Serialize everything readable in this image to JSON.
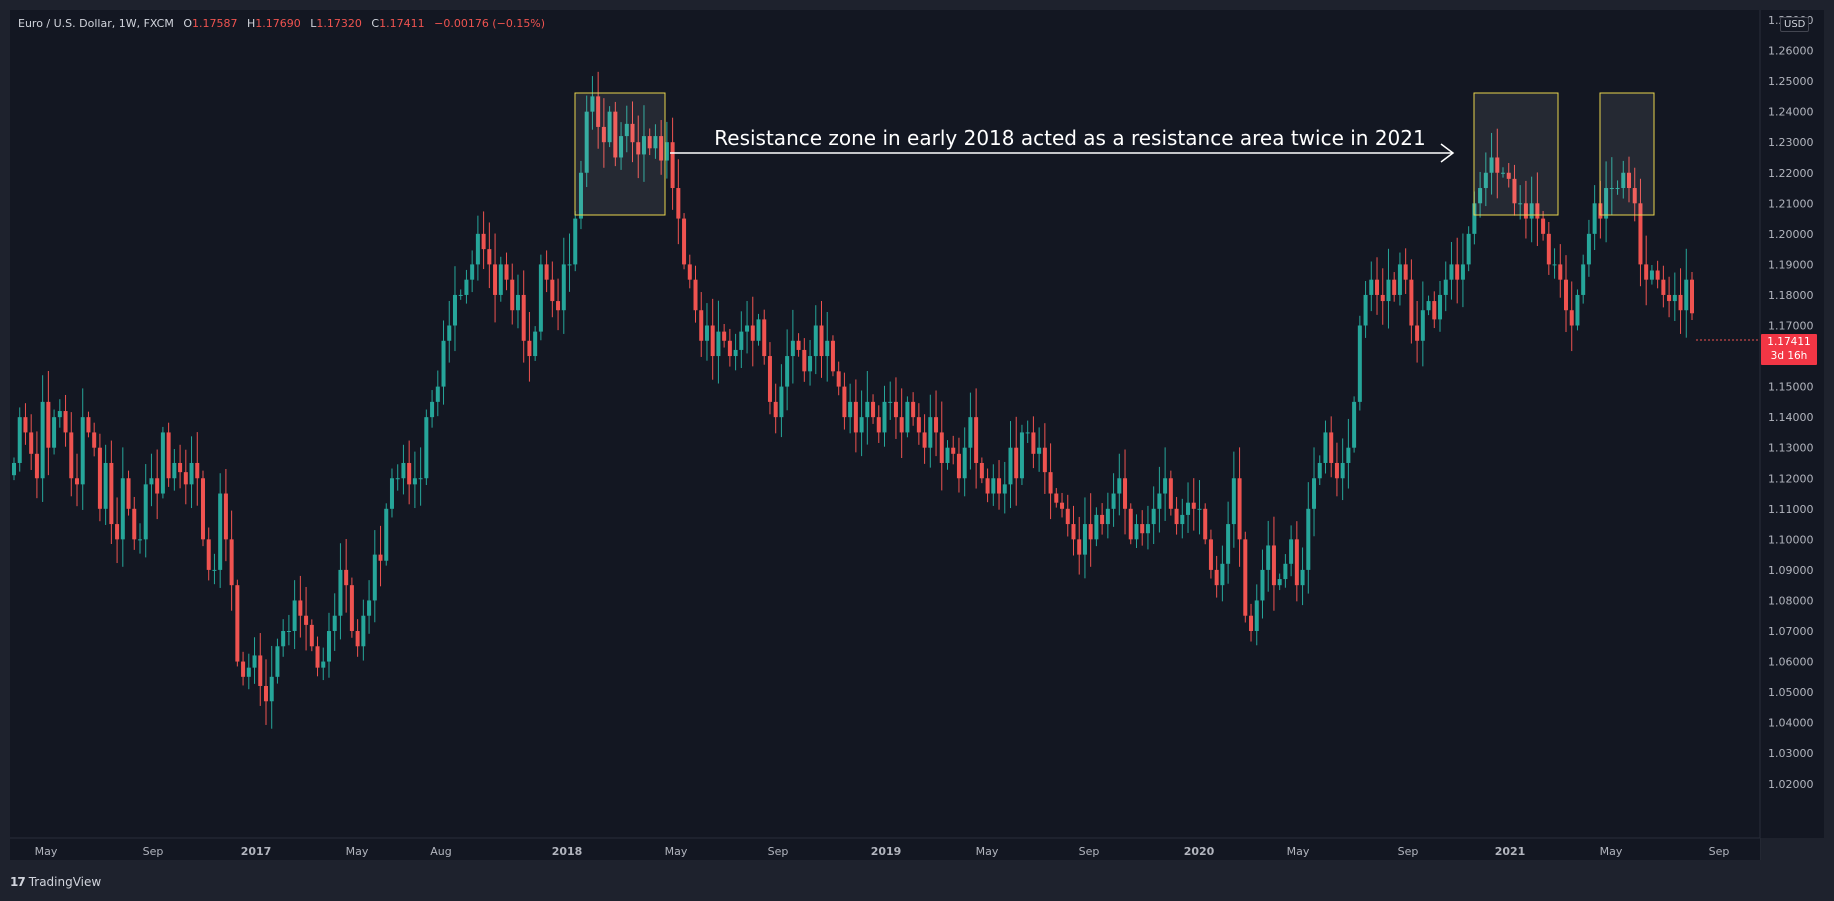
{
  "header": {
    "symbol": "Euro / U.S. Dollar, 1W, FXCM",
    "open_label": "O",
    "open": "1.17587",
    "high_label": "H",
    "high": "1.17690",
    "low_label": "L",
    "low": "1.17320",
    "close_label": "C",
    "close": "1.17411",
    "change": "−0.00176 (−0.15%)"
  },
  "currency": "USD",
  "last_price": {
    "value": "1.17411",
    "countdown": "3d 16h"
  },
  "annotation": "Resistance zone in early 2018 acted as a resistance area twice in 2021",
  "brand": {
    "logo": "17",
    "name": "TradingView"
  },
  "colors": {
    "bg": "#131722",
    "up": "#26a69a",
    "down": "#ef5350",
    "zone": "#e8d44d",
    "text": "#d1d4dc"
  },
  "chart_data": {
    "type": "candlestick",
    "title": "Euro / U.S. Dollar, 1W, FXCM",
    "x_ticks": [
      "May",
      "Sep",
      "2017",
      "May",
      "Aug",
      "2018",
      "May",
      "Sep",
      "2019",
      "May",
      "Sep",
      "2020",
      "May",
      "Sep",
      "2021",
      "May",
      "Sep"
    ],
    "y_ticks": [
      "1.27000",
      "1.26000",
      "1.25000",
      "1.24000",
      "1.23000",
      "1.22000",
      "1.21000",
      "1.20000",
      "1.19000",
      "1.18000",
      "1.17000",
      "1.16000",
      "1.15000",
      "1.14000",
      "1.13000",
      "1.12000",
      "1.11000",
      "1.10000",
      "1.09000",
      "1.08000",
      "1.07000",
      "1.06000",
      "1.05000",
      "1.04000",
      "1.03000",
      "1.02000"
    ],
    "ylim": [
      1.013,
      1.286
    ],
    "closes": [
      1.125,
      1.14,
      1.135,
      1.128,
      1.12,
      1.145,
      1.13,
      1.14,
      1.142,
      1.135,
      1.12,
      1.118,
      1.14,
      1.135,
      1.13,
      1.11,
      1.125,
      1.105,
      1.1,
      1.12,
      1.11,
      1.1,
      1.1,
      1.118,
      1.12,
      1.115,
      1.135,
      1.12,
      1.125,
      1.122,
      1.118,
      1.125,
      1.12,
      1.1,
      1.09,
      1.09,
      1.115,
      1.1,
      1.085,
      1.06,
      1.055,
      1.058,
      1.062,
      1.052,
      1.047,
      1.055,
      1.065,
      1.07,
      1.07,
      1.08,
      1.075,
      1.072,
      1.065,
      1.058,
      1.06,
      1.07,
      1.075,
      1.09,
      1.085,
      1.07,
      1.065,
      1.075,
      1.08,
      1.095,
      1.093,
      1.11,
      1.12,
      1.12,
      1.125,
      1.118,
      1.12,
      1.12,
      1.14,
      1.145,
      1.15,
      1.165,
      1.17,
      1.18,
      1.18,
      1.185,
      1.19,
      1.2,
      1.195,
      1.19,
      1.18,
      1.19,
      1.185,
      1.175,
      1.18,
      1.165,
      1.16,
      1.168,
      1.19,
      1.185,
      1.178,
      1.175,
      1.19,
      1.19,
      1.205,
      1.22,
      1.24,
      1.245,
      1.235,
      1.23,
      1.24,
      1.225,
      1.232,
      1.236,
      1.23,
      1.226,
      1.232,
      1.228,
      1.232,
      1.224,
      1.23,
      1.215,
      1.205,
      1.19,
      1.185,
      1.175,
      1.165,
      1.17,
      1.16,
      1.168,
      1.165,
      1.16,
      1.162,
      1.168,
      1.17,
      1.165,
      1.172,
      1.16,
      1.145,
      1.14,
      1.15,
      1.16,
      1.165,
      1.162,
      1.155,
      1.16,
      1.17,
      1.16,
      1.165,
      1.155,
      1.15,
      1.14,
      1.145,
      1.135,
      1.14,
      1.145,
      1.14,
      1.135,
      1.145,
      1.145,
      1.14,
      1.135,
      1.145,
      1.14,
      1.135,
      1.13,
      1.14,
      1.135,
      1.125,
      1.13,
      1.128,
      1.12,
      1.13,
      1.14,
      1.125,
      1.12,
      1.115,
      1.12,
      1.115,
      1.118,
      1.13,
      1.12,
      1.135,
      1.135,
      1.128,
      1.13,
      1.122,
      1.115,
      1.112,
      1.11,
      1.105,
      1.1,
      1.095,
      1.105,
      1.1,
      1.108,
      1.105,
      1.11,
      1.115,
      1.12,
      1.11,
      1.1,
      1.105,
      1.102,
      1.105,
      1.11,
      1.115,
      1.12,
      1.11,
      1.105,
      1.108,
      1.112,
      1.11,
      1.11,
      1.1,
      1.09,
      1.085,
      1.092,
      1.105,
      1.12,
      1.1,
      1.075,
      1.07,
      1.08,
      1.09,
      1.098,
      1.085,
      1.087,
      1.092,
      1.1,
      1.085,
      1.09,
      1.11,
      1.12,
      1.125,
      1.135,
      1.125,
      1.12,
      1.125,
      1.13,
      1.145,
      1.17,
      1.18,
      1.185,
      1.18,
      1.178,
      1.185,
      1.18,
      1.19,
      1.185,
      1.17,
      1.165,
      1.175,
      1.178,
      1.172,
      1.18,
      1.185,
      1.19,
      1.185,
      1.19,
      1.2,
      1.21,
      1.215,
      1.22,
      1.225,
      1.22,
      1.22,
      1.218,
      1.21,
      1.21,
      1.205,
      1.21,
      1.205,
      1.2,
      1.19,
      1.19,
      1.185,
      1.175,
      1.17,
      1.18,
      1.19,
      1.2,
      1.21,
      1.205,
      1.215,
      1.215,
      1.215,
      1.22,
      1.215,
      1.21,
      1.19,
      1.185,
      1.188,
      1.185,
      1.18,
      1.178,
      1.18,
      1.175,
      1.185,
      1.174
    ]
  }
}
